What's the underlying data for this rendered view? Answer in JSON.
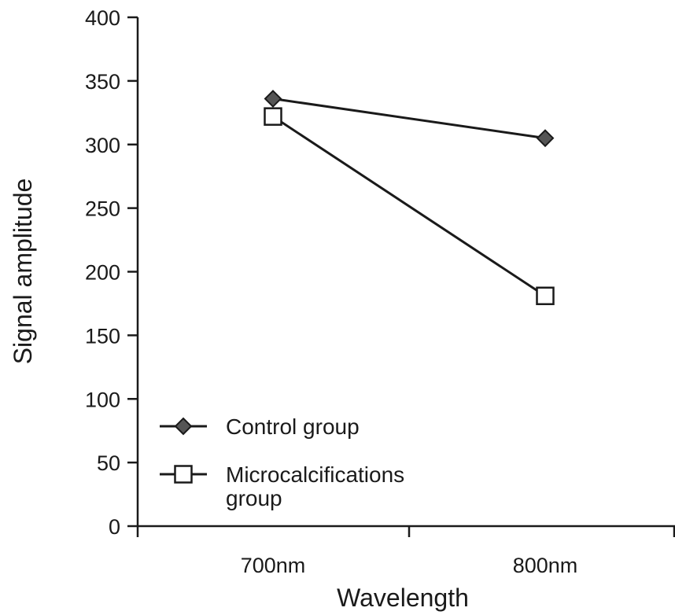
{
  "chart_data": {
    "type": "line",
    "categories": [
      "700nm",
      "800nm"
    ],
    "xlabel": "Wavelength",
    "ylabel": "Signal amplitude",
    "ylim": [
      0,
      400
    ],
    "yticks": [
      0,
      50,
      100,
      150,
      200,
      250,
      300,
      350,
      400
    ],
    "grid": false,
    "legend_position": "bottom-left",
    "series": [
      {
        "name": "Control group",
        "values": [
          336,
          305
        ],
        "marker": "diamond",
        "marker_color": "#555555",
        "legend_lines": [
          "Control group"
        ]
      },
      {
        "name": "Microcalcifications group",
        "values": [
          322,
          181
        ],
        "marker": "square-open",
        "marker_color": "#ffffff",
        "legend_lines": [
          "Microcalcifications",
          "group"
        ]
      }
    ]
  }
}
